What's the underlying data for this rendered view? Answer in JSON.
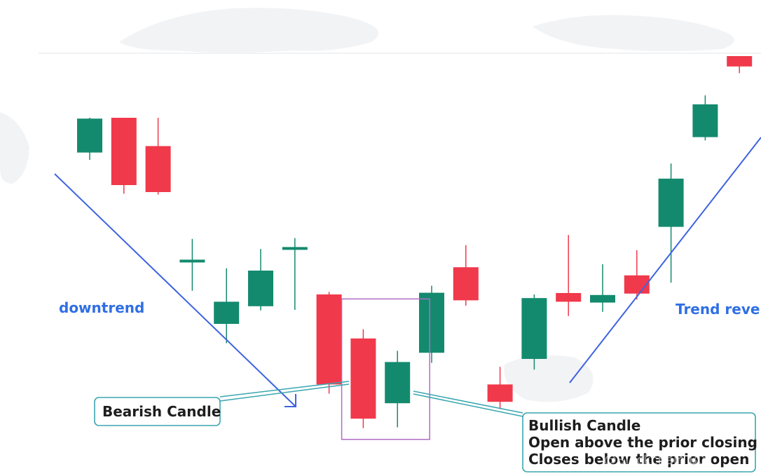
{
  "colors": {
    "bullish": "#138a6e",
    "bearish": "#f0394b",
    "trendline": "#3d63e0",
    "highlight_box": "#b06cc4",
    "callout_border": "#3aa6b0",
    "label_text": "#2f6fe3",
    "watermark": "#f2f3f5"
  },
  "labels": {
    "downtrend": "downtrend",
    "uptrend": "Trend rever",
    "bearish_callout": "Bearish Candle",
    "bullish_callout": [
      "Bullish Candle",
      "Open above the prior closing",
      "Closes below the prior open"
    ],
    "watermark_text": "@Blockchain Bull"
  },
  "chart_data": {
    "type": "candlestick",
    "candles": [
      {
        "dir": "bull",
        "open": 40.6,
        "close": 52.7,
        "high": 53.0,
        "low": 38.0
      },
      {
        "dir": "bear",
        "open": 53.0,
        "close": 29.0,
        "high": 53.0,
        "low": 25.9
      },
      {
        "dir": "bear",
        "open": 42.9,
        "close": 26.5,
        "high": 53.0,
        "low": 25.6
      },
      {
        "dir": "doji",
        "open": 1.9,
        "close": 1.9,
        "high": 9.8,
        "low": -8.7
      },
      {
        "dir": "bull",
        "open": -20.5,
        "close": -12.6,
        "high": -0.7,
        "low": -27.4
      },
      {
        "dir": "bull",
        "open": -14.2,
        "close": -1.5,
        "high": 6.2,
        "low": -15.7
      },
      {
        "dir": "doji",
        "open": 6.4,
        "close": 6.4,
        "high": 10.1,
        "low": -15.5
      },
      {
        "dir": "bear",
        "open": -10.0,
        "close": -42.1,
        "high": -9.1,
        "low": -45.4
      },
      {
        "dir": "bear",
        "open": -25.7,
        "close": -54.3,
        "high": -22.4,
        "low": -57.7
      },
      {
        "dir": "bull",
        "open": -48.8,
        "close": -34.1,
        "high": -30.1,
        "low": -57.4
      },
      {
        "dir": "bull",
        "open": -30.8,
        "close": -9.4,
        "high": -6.9,
        "low": -34.4
      },
      {
        "dir": "bear",
        "open": -0.3,
        "close": -12.1,
        "high": 7.6,
        "low": -14.0
      },
      {
        "dir": "bear",
        "open": -42.1,
        "close": -48.3,
        "high": -35.8,
        "low": -50.9
      },
      {
        "dir": "bull",
        "open": -33.0,
        "close": -11.3,
        "high": -10.0,
        "low": -36.8
      },
      {
        "dir": "bear",
        "open": -9.5,
        "close": -12.6,
        "high": 11.2,
        "low": -17.7
      },
      {
        "dir": "bull",
        "open": -12.9,
        "close": -10.2,
        "high": 0.8,
        "low": -16.2
      },
      {
        "dir": "bear",
        "open": -3.2,
        "close": -9.7,
        "high": 5.8,
        "low": -11.8
      },
      {
        "dir": "bull",
        "open": 14.1,
        "close": 31.3,
        "high": 36.7,
        "low": -5.8
      },
      {
        "dir": "bull",
        "open": 46.1,
        "close": 57.8,
        "high": 61.0,
        "low": 44.9
      },
      {
        "dir": "bear",
        "open": 75.0,
        "close": 71.3,
        "high": 75.0,
        "low": 68.9
      }
    ],
    "highlight_group": [
      7,
      8,
      9
    ],
    "xlabel": "",
    "ylabel": "",
    "grid": false
  }
}
